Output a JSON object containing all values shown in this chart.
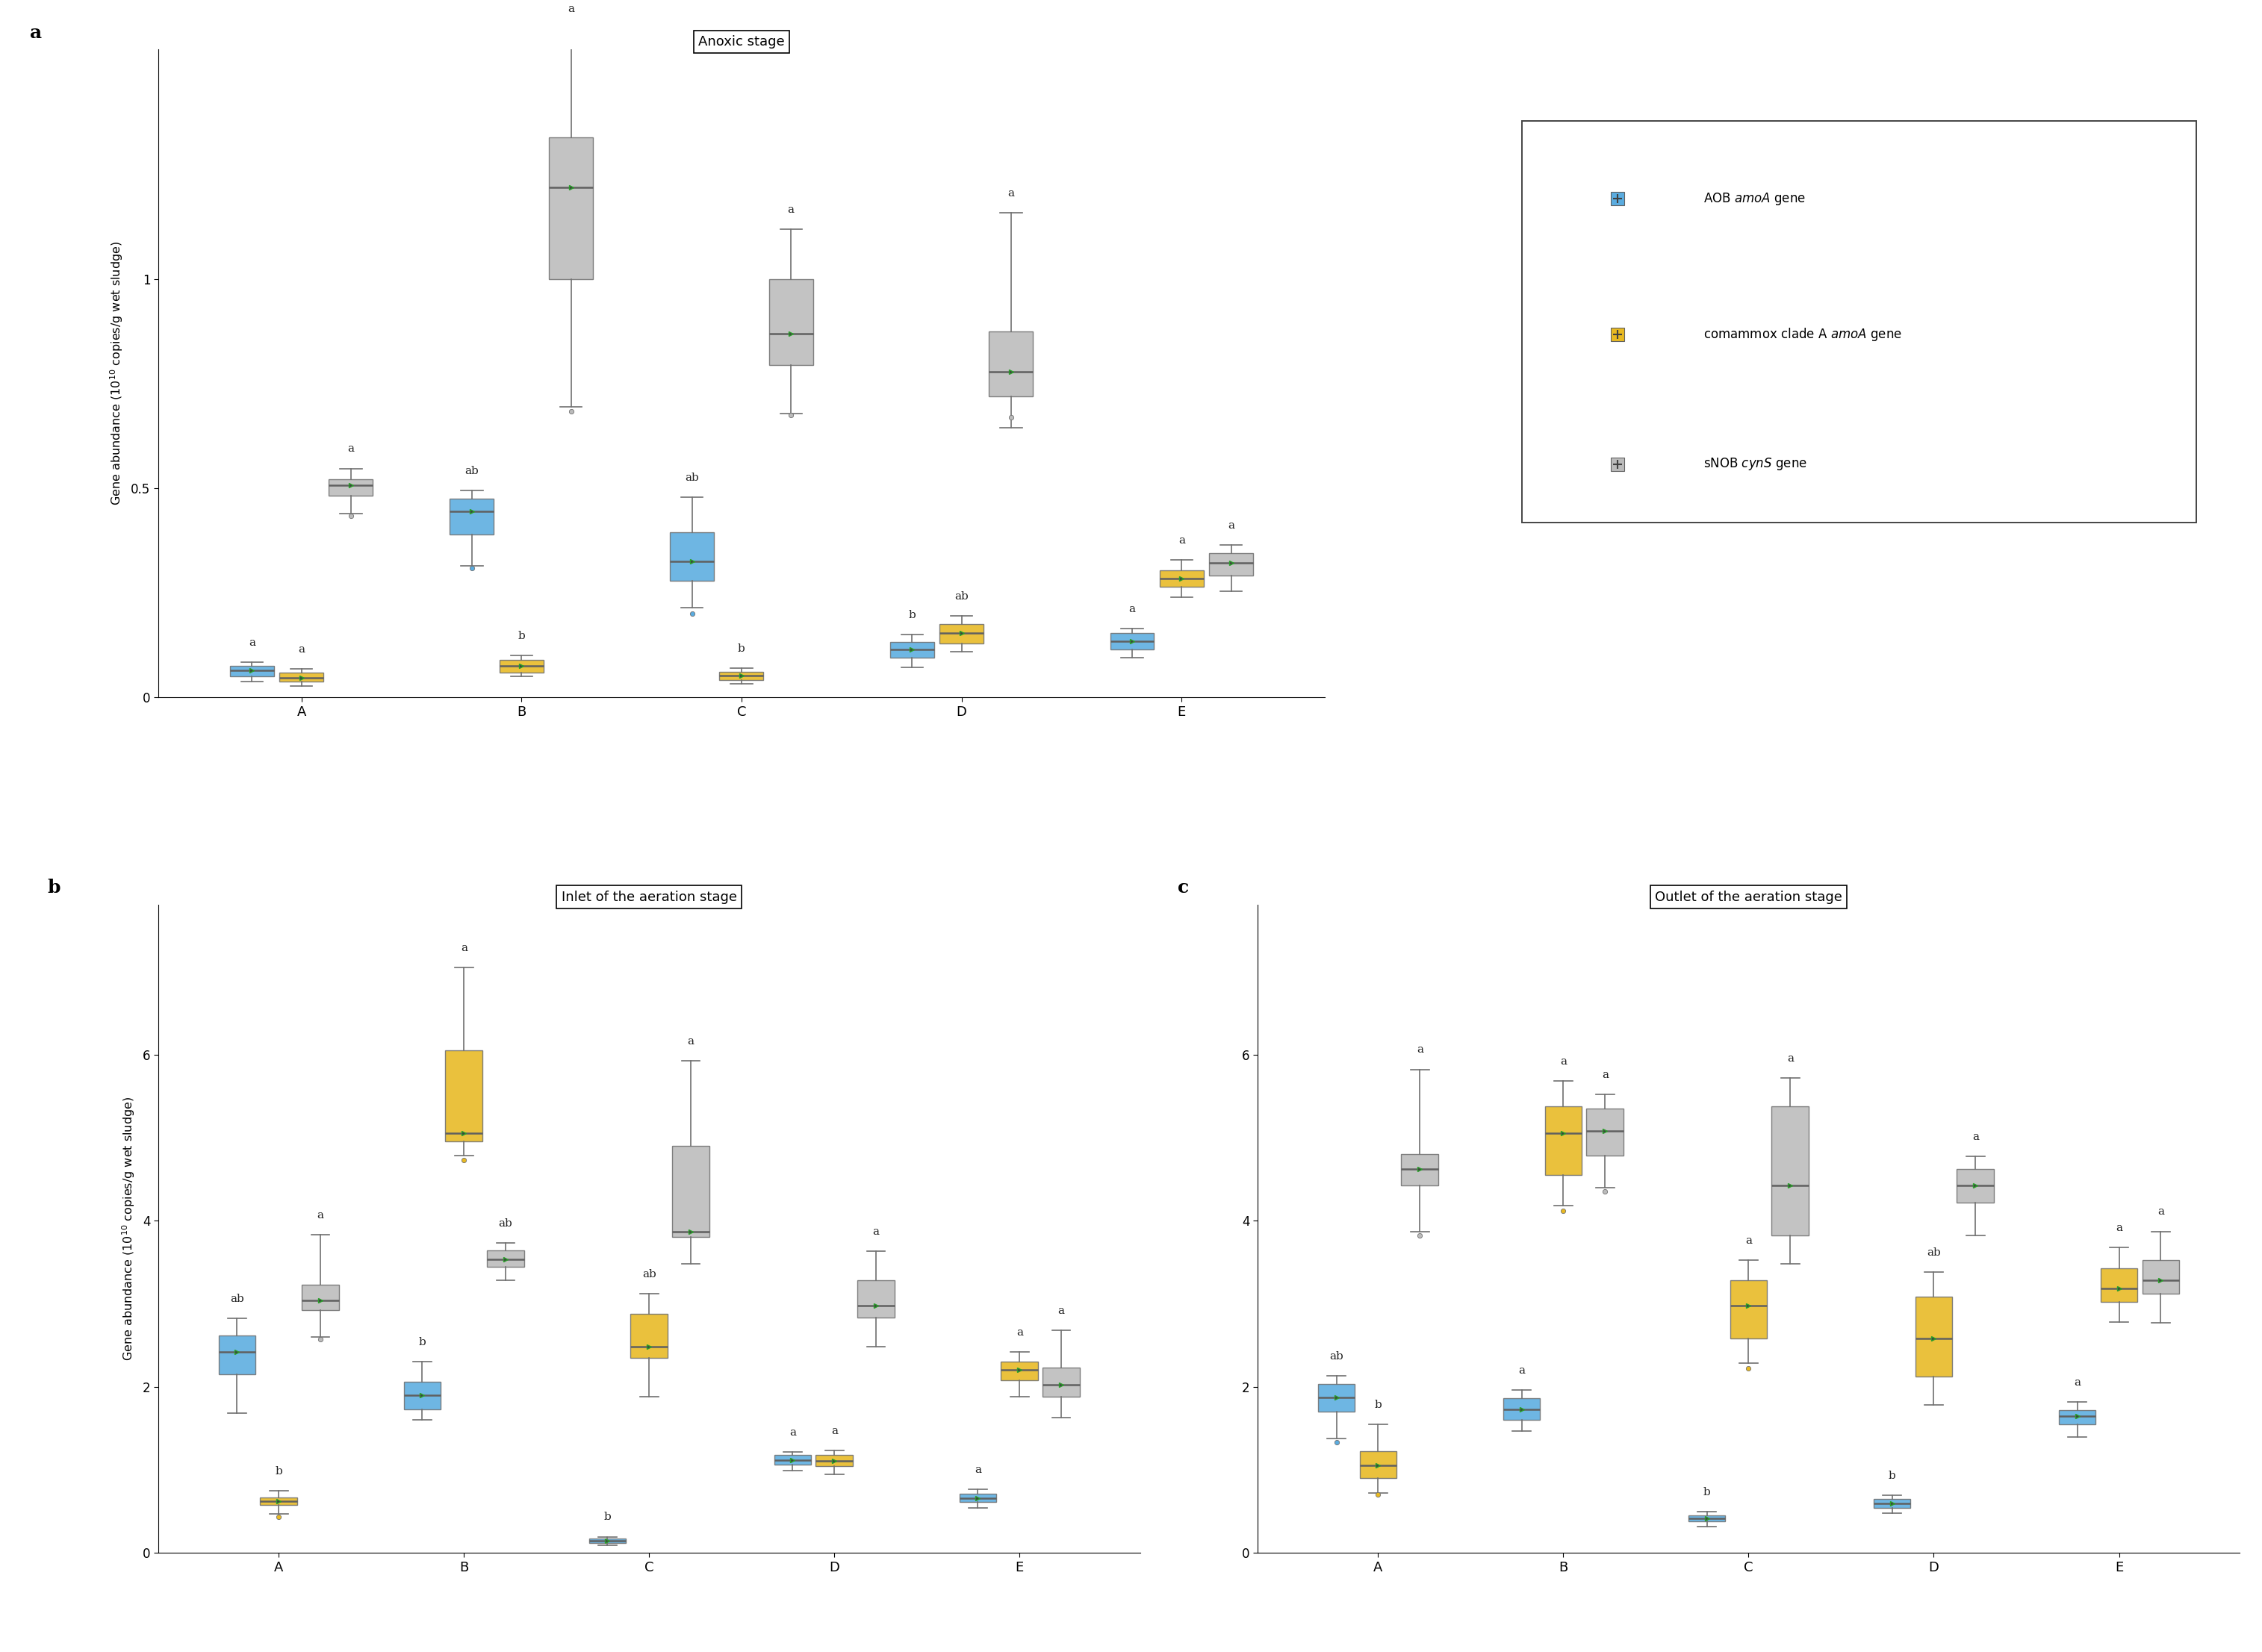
{
  "panel_a_title": "Anoxic stage",
  "panel_b_title": "Inlet of the aeration stage",
  "panel_c_title": "Outlet of the aeration stage",
  "ylabel": "Gene abundance (10$^{10}$ copies/g wet sludge)",
  "xlabel_categories": [
    "A",
    "B",
    "C",
    "D",
    "E"
  ],
  "colors": {
    "blue": "#5AACE0",
    "yellow": "#E8B922",
    "gray": "#BBBBBB"
  },
  "panel_a": {
    "ylim": [
      0,
      1.55
    ],
    "yticks": [
      0,
      0.5,
      1.0
    ],
    "ytick_labels": [
      "0",
      "0.5",
      "1"
    ],
    "blue": {
      "A": {
        "q1": 0.05,
        "median": 0.065,
        "q3": 0.075,
        "whislo": 0.038,
        "whishi": 0.085,
        "fliers": []
      },
      "B": {
        "q1": 0.39,
        "median": 0.445,
        "q3": 0.475,
        "whislo": 0.315,
        "whishi": 0.495,
        "fliers": [
          0.31
        ]
      },
      "C": {
        "q1": 0.28,
        "median": 0.325,
        "q3": 0.395,
        "whislo": 0.215,
        "whishi": 0.48,
        "fliers": [
          0.2
        ]
      },
      "D": {
        "q1": 0.095,
        "median": 0.115,
        "q3": 0.132,
        "whislo": 0.072,
        "whishi": 0.15,
        "fliers": []
      },
      "E": {
        "q1": 0.115,
        "median": 0.135,
        "q3": 0.155,
        "whislo": 0.095,
        "whishi": 0.165,
        "fliers": []
      }
    },
    "yellow": {
      "A": {
        "q1": 0.038,
        "median": 0.048,
        "q3": 0.06,
        "whislo": 0.028,
        "whishi": 0.068,
        "fliers": []
      },
      "B": {
        "q1": 0.06,
        "median": 0.075,
        "q3": 0.09,
        "whislo": 0.05,
        "whishi": 0.1,
        "fliers": []
      },
      "C": {
        "q1": 0.042,
        "median": 0.052,
        "q3": 0.062,
        "whislo": 0.032,
        "whishi": 0.07,
        "fliers": []
      },
      "D": {
        "q1": 0.13,
        "median": 0.155,
        "q3": 0.175,
        "whislo": 0.11,
        "whishi": 0.195,
        "fliers": []
      },
      "E": {
        "q1": 0.265,
        "median": 0.285,
        "q3": 0.305,
        "whislo": 0.24,
        "whishi": 0.33,
        "fliers": []
      }
    },
    "gray": {
      "A": {
        "q1": 0.483,
        "median": 0.507,
        "q3": 0.523,
        "whislo": 0.44,
        "whishi": 0.548,
        "fliers": [
          0.435
        ]
      },
      "B": {
        "q1": 1.0,
        "median": 1.22,
        "q3": 1.34,
        "whislo": 0.695,
        "whishi": 1.6,
        "fliers": [
          0.685
        ]
      },
      "C": {
        "q1": 0.795,
        "median": 0.87,
        "q3": 1.0,
        "whislo": 0.68,
        "whishi": 1.12,
        "fliers": [
          0.675
        ]
      },
      "D": {
        "q1": 0.72,
        "median": 0.78,
        "q3": 0.875,
        "whislo": 0.645,
        "whishi": 1.16,
        "fliers": [
          0.67
        ]
      },
      "E": {
        "q1": 0.292,
        "median": 0.322,
        "q3": 0.345,
        "whislo": 0.255,
        "whishi": 0.365,
        "fliers": []
      }
    },
    "annots_blue": [
      "a",
      "ab",
      "ab",
      "b",
      "a"
    ],
    "annots_yellow": [
      "a",
      "b",
      "b",
      "ab",
      "a"
    ],
    "annots_gray": [
      "a",
      "a",
      "a",
      "a",
      "a"
    ]
  },
  "panel_b": {
    "ylim": [
      0,
      7.8
    ],
    "yticks": [
      0,
      2,
      4,
      6
    ],
    "ytick_labels": [
      "0",
      "2",
      "4",
      "6"
    ],
    "blue": {
      "A": {
        "q1": 2.15,
        "median": 2.42,
        "q3": 2.62,
        "whislo": 1.68,
        "whishi": 2.82,
        "fliers": []
      },
      "B": {
        "q1": 1.73,
        "median": 1.9,
        "q3": 2.06,
        "whislo": 1.6,
        "whishi": 2.3,
        "fliers": []
      },
      "C": {
        "q1": 0.12,
        "median": 0.145,
        "q3": 0.175,
        "whislo": 0.095,
        "whishi": 0.195,
        "fliers": []
      },
      "D": {
        "q1": 1.06,
        "median": 1.12,
        "q3": 1.175,
        "whislo": 0.99,
        "whishi": 1.215,
        "fliers": []
      },
      "E": {
        "q1": 0.615,
        "median": 0.66,
        "q3": 0.715,
        "whislo": 0.54,
        "whishi": 0.765,
        "fliers": []
      }
    },
    "yellow": {
      "A": {
        "q1": 0.58,
        "median": 0.625,
        "q3": 0.67,
        "whislo": 0.47,
        "whishi": 0.75,
        "fliers": [
          0.43
        ]
      },
      "B": {
        "q1": 4.95,
        "median": 5.05,
        "q3": 6.05,
        "whislo": 4.78,
        "whishi": 7.05,
        "fliers": [
          4.73
        ]
      },
      "C": {
        "q1": 2.35,
        "median": 2.48,
        "q3": 2.88,
        "whislo": 1.88,
        "whishi": 3.12,
        "fliers": []
      },
      "D": {
        "q1": 1.04,
        "median": 1.11,
        "q3": 1.175,
        "whislo": 0.945,
        "whishi": 1.23,
        "fliers": []
      },
      "E": {
        "q1": 2.08,
        "median": 2.2,
        "q3": 2.3,
        "whislo": 1.88,
        "whishi": 2.42,
        "fliers": []
      }
    },
    "gray": {
      "A": {
        "q1": 2.92,
        "median": 3.04,
        "q3": 3.23,
        "whislo": 2.6,
        "whishi": 3.83,
        "fliers": [
          2.57
        ]
      },
      "B": {
        "q1": 3.44,
        "median": 3.53,
        "q3": 3.64,
        "whislo": 3.28,
        "whishi": 3.73,
        "fliers": []
      },
      "C": {
        "q1": 3.8,
        "median": 3.87,
        "q3": 4.9,
        "whislo": 3.48,
        "whishi": 5.92,
        "fliers": []
      },
      "D": {
        "q1": 2.83,
        "median": 2.98,
        "q3": 3.28,
        "whislo": 2.48,
        "whishi": 3.63,
        "fliers": []
      },
      "E": {
        "q1": 1.88,
        "median": 2.02,
        "q3": 2.23,
        "whislo": 1.63,
        "whishi": 2.68,
        "fliers": []
      }
    },
    "annots_blue": [
      "ab",
      "b",
      "b",
      "a",
      "a"
    ],
    "annots_yellow": [
      "b",
      "a",
      "ab",
      "a",
      "a"
    ],
    "annots_gray": [
      "a",
      "ab",
      "a",
      "a",
      "a"
    ]
  },
  "panel_c": {
    "ylim": [
      0,
      7.8
    ],
    "yticks": [
      0,
      2,
      4,
      6
    ],
    "ytick_labels": [
      "0",
      "2",
      "4",
      "6"
    ],
    "blue": {
      "A": {
        "q1": 1.7,
        "median": 1.87,
        "q3": 2.03,
        "whislo": 1.38,
        "whishi": 2.13,
        "fliers": [
          1.33
        ]
      },
      "B": {
        "q1": 1.6,
        "median": 1.73,
        "q3": 1.86,
        "whislo": 1.47,
        "whishi": 1.96,
        "fliers": []
      },
      "C": {
        "q1": 0.375,
        "median": 0.415,
        "q3": 0.455,
        "whislo": 0.315,
        "whishi": 0.492,
        "fliers": []
      },
      "D": {
        "q1": 0.545,
        "median": 0.595,
        "q3": 0.645,
        "whislo": 0.475,
        "whishi": 0.695,
        "fliers": []
      },
      "E": {
        "q1": 1.545,
        "median": 1.645,
        "q3": 1.715,
        "whislo": 1.395,
        "whishi": 1.815,
        "fliers": []
      }
    },
    "yellow": {
      "A": {
        "q1": 0.9,
        "median": 1.05,
        "q3": 1.22,
        "whislo": 0.72,
        "whishi": 1.55,
        "fliers": [
          0.7
        ]
      },
      "B": {
        "q1": 4.55,
        "median": 5.05,
        "q3": 5.38,
        "whislo": 4.18,
        "whishi": 5.68,
        "fliers": [
          4.12
        ]
      },
      "C": {
        "q1": 2.58,
        "median": 2.98,
        "q3": 3.28,
        "whislo": 2.28,
        "whishi": 3.52,
        "fliers": [
          2.22
        ]
      },
      "D": {
        "q1": 2.12,
        "median": 2.58,
        "q3": 3.08,
        "whislo": 1.78,
        "whishi": 3.38,
        "fliers": []
      },
      "E": {
        "q1": 3.02,
        "median": 3.18,
        "q3": 3.43,
        "whislo": 2.78,
        "whishi": 3.68,
        "fliers": []
      }
    },
    "gray": {
      "A": {
        "q1": 4.42,
        "median": 4.62,
        "q3": 4.8,
        "whislo": 3.87,
        "whishi": 5.82,
        "fliers": [
          3.82
        ]
      },
      "B": {
        "q1": 4.78,
        "median": 5.08,
        "q3": 5.35,
        "whislo": 4.4,
        "whishi": 5.52,
        "fliers": [
          4.35
        ]
      },
      "C": {
        "q1": 3.82,
        "median": 4.42,
        "q3": 5.38,
        "whislo": 3.48,
        "whishi": 5.72,
        "fliers": []
      },
      "D": {
        "q1": 4.22,
        "median": 4.42,
        "q3": 4.62,
        "whislo": 3.82,
        "whishi": 4.77,
        "fliers": []
      },
      "E": {
        "q1": 3.12,
        "median": 3.28,
        "q3": 3.52,
        "whislo": 2.77,
        "whishi": 3.87,
        "fliers": []
      }
    },
    "annots_blue": [
      "ab",
      "a",
      "b",
      "b",
      "a"
    ],
    "annots_yellow": [
      "b",
      "a",
      "a",
      "ab",
      "a"
    ],
    "annots_gray": [
      "a",
      "a",
      "a",
      "a",
      "a"
    ]
  }
}
